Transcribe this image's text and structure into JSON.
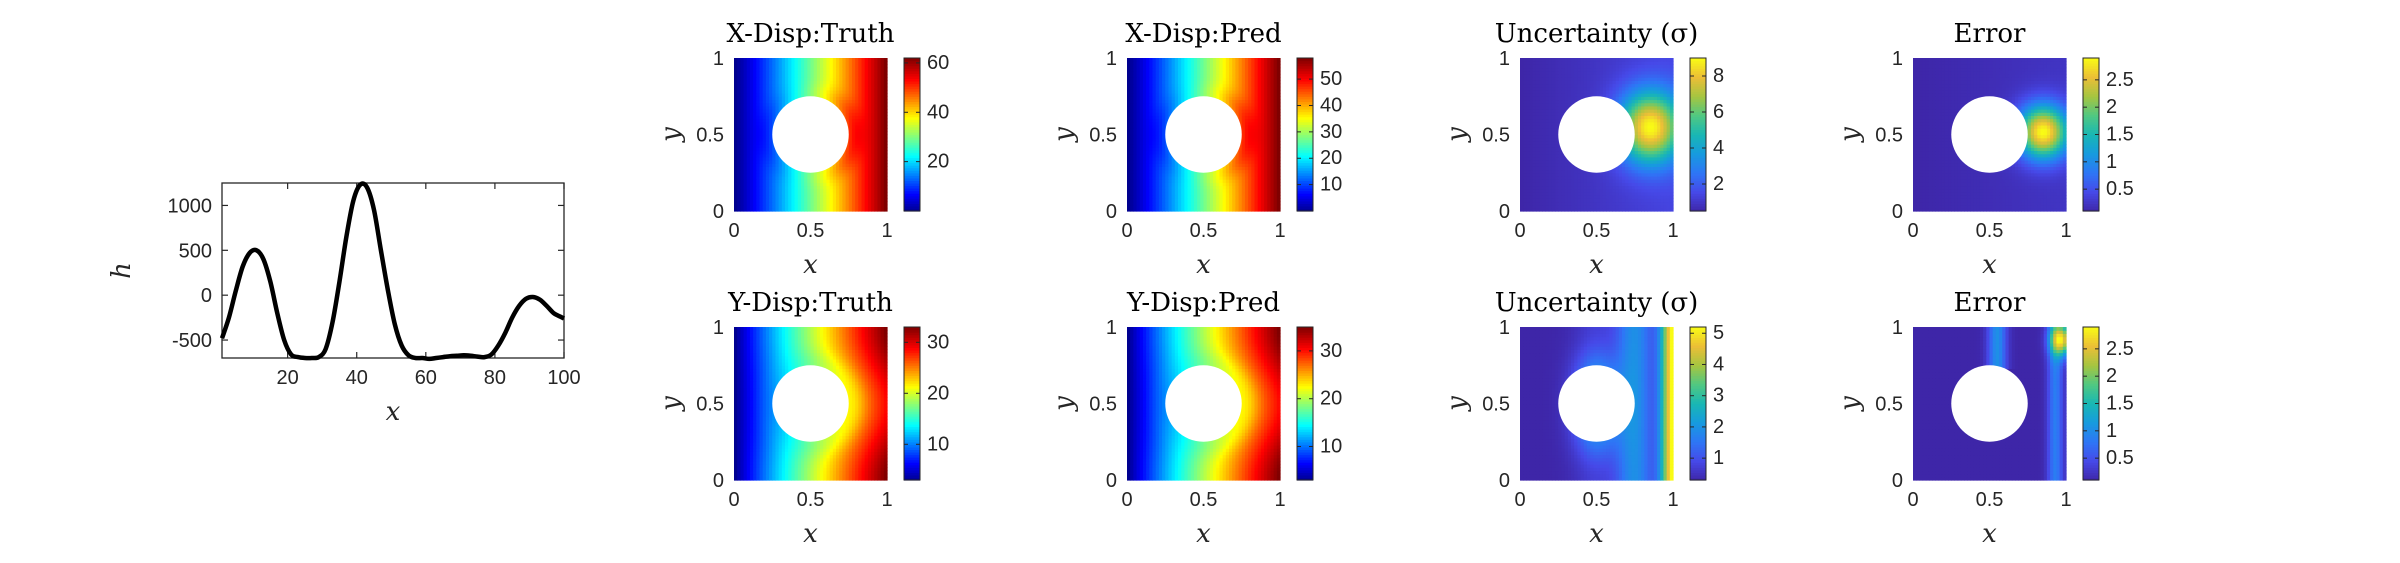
{
  "chart_data": [
    {
      "type": "line",
      "xlabel": "x",
      "ylabel": "h",
      "xlim": [
        1,
        100
      ],
      "ylim": [
        -700,
        1250
      ],
      "xticks": [
        "20",
        "40",
        "60",
        "80",
        "100"
      ],
      "yticks": [
        "-500",
        "0",
        "500",
        "1000"
      ],
      "line_color": "#000000",
      "series": [
        {
          "x": [
            1,
            3,
            5,
            7,
            9,
            11,
            13,
            15,
            17,
            19,
            21,
            23,
            25,
            27,
            29,
            31,
            33,
            35,
            37,
            39,
            41,
            43,
            45,
            47,
            49,
            51,
            53,
            55,
            57,
            59,
            61,
            63,
            65,
            67,
            69,
            71,
            73,
            75,
            77,
            79,
            81,
            83,
            85,
            87,
            89,
            91,
            93,
            95,
            97,
            99,
            100
          ],
          "y": [
            -480,
            -250,
            50,
            320,
            470,
            500,
            400,
            150,
            -200,
            -500,
            -660,
            -690,
            -700,
            -700,
            -690,
            -600,
            -300,
            150,
            650,
            1050,
            1230,
            1200,
            950,
            500,
            60,
            -320,
            -560,
            -670,
            -700,
            -700,
            -710,
            -700,
            -690,
            -680,
            -675,
            -670,
            -675,
            -685,
            -690,
            -660,
            -560,
            -420,
            -250,
            -120,
            -40,
            -20,
            -50,
            -120,
            -200,
            -240,
            -260
          ]
        }
      ]
    },
    {
      "type": "heatmap",
      "title": "X-Disp:Truth",
      "xlabel": "x",
      "ylabel": "y",
      "xlim": [
        0,
        1
      ],
      "ylim": [
        0,
        1
      ],
      "xticks": [
        "0",
        "0.5",
        "1"
      ],
      "yticks": [
        "0",
        "0.5",
        "1"
      ],
      "hole": {
        "center": [
          0.5,
          0.5
        ],
        "radius": 0.25
      },
      "colormap": "jet",
      "clim": [
        0,
        62
      ],
      "colorbar_ticks": [
        20,
        40,
        60
      ],
      "field": "x_disp"
    },
    {
      "type": "heatmap",
      "title": "X-Disp:Pred",
      "xlabel": "x",
      "ylabel": "y",
      "xlim": [
        0,
        1
      ],
      "ylim": [
        0,
        1
      ],
      "xticks": [
        "0",
        "0.5",
        "1"
      ],
      "yticks": [
        "0",
        "0.5",
        "1"
      ],
      "hole": {
        "center": [
          0.5,
          0.5
        ],
        "radius": 0.25
      },
      "colormap": "jet",
      "clim": [
        0,
        58
      ],
      "colorbar_ticks": [
        10,
        20,
        30,
        40,
        50
      ],
      "field": "x_disp"
    },
    {
      "type": "heatmap",
      "title": "Uncertainty (σ)",
      "xlabel": "x",
      "ylabel": "y",
      "xlim": [
        0,
        1
      ],
      "ylim": [
        0,
        1
      ],
      "xticks": [
        "0",
        "0.5",
        "1"
      ],
      "yticks": [
        "0",
        "0.5",
        "1"
      ],
      "hole": {
        "center": [
          0.5,
          0.5
        ],
        "radius": 0.25
      },
      "colormap": "parula",
      "clim": [
        0.5,
        9
      ],
      "colorbar_ticks": [
        2,
        4,
        6,
        8
      ],
      "field": "x_unc"
    },
    {
      "type": "heatmap",
      "title": "Error",
      "xlabel": "x",
      "ylabel": "y",
      "xlim": [
        0,
        1
      ],
      "ylim": [
        0,
        1
      ],
      "xticks": [
        "0",
        "0.5",
        "1"
      ],
      "yticks": [
        "0",
        "0.5",
        "1"
      ],
      "hole": {
        "center": [
          0.5,
          0.5
        ],
        "radius": 0.25
      },
      "colormap": "parula",
      "clim": [
        0.1,
        2.9
      ],
      "colorbar_ticks": [
        0.5,
        1,
        1.5,
        2,
        2.5
      ],
      "field": "x_err"
    },
    {
      "type": "heatmap",
      "title": "Y-Disp:Truth",
      "xlabel": "x",
      "ylabel": "y",
      "xlim": [
        0,
        1
      ],
      "ylim": [
        0,
        1
      ],
      "xticks": [
        "0",
        "0.5",
        "1"
      ],
      "yticks": [
        "0",
        "0.5",
        "1"
      ],
      "hole": {
        "center": [
          0.5,
          0.5
        ],
        "radius": 0.25
      },
      "colormap": "jet",
      "clim": [
        3,
        33
      ],
      "colorbar_ticks": [
        10,
        20,
        30
      ],
      "field": "y_disp"
    },
    {
      "type": "heatmap",
      "title": "Y-Disp:Pred",
      "xlabel": "x",
      "ylabel": "y",
      "xlim": [
        0,
        1
      ],
      "ylim": [
        0,
        1
      ],
      "xticks": [
        "0",
        "0.5",
        "1"
      ],
      "yticks": [
        "0",
        "0.5",
        "1"
      ],
      "hole": {
        "center": [
          0.5,
          0.5
        ],
        "radius": 0.25
      },
      "colormap": "jet",
      "clim": [
        3,
        35
      ],
      "colorbar_ticks": [
        10,
        20,
        30
      ],
      "field": "y_disp"
    },
    {
      "type": "heatmap",
      "title": "Uncertainty (σ)",
      "xlabel": "x",
      "ylabel": "y",
      "xlim": [
        0,
        1
      ],
      "ylim": [
        0,
        1
      ],
      "xticks": [
        "0",
        "0.5",
        "1"
      ],
      "yticks": [
        "0",
        "0.5",
        "1"
      ],
      "hole": {
        "center": [
          0.5,
          0.5
        ],
        "radius": 0.25
      },
      "colormap": "parula",
      "clim": [
        0.3,
        5.2
      ],
      "colorbar_ticks": [
        1,
        2,
        3,
        4,
        5
      ],
      "field": "y_unc"
    },
    {
      "type": "heatmap",
      "title": "Error",
      "xlabel": "x",
      "ylabel": "y",
      "xlim": [
        0,
        1
      ],
      "ylim": [
        0,
        1
      ],
      "xticks": [
        "0",
        "0.5",
        "1"
      ],
      "yticks": [
        "0",
        "0.5",
        "1"
      ],
      "hole": {
        "center": [
          0.5,
          0.5
        ],
        "radius": 0.25
      },
      "colormap": "parula",
      "clim": [
        0.1,
        2.9
      ],
      "colorbar_ticks": [
        0.5,
        1,
        1.5,
        2,
        2.5
      ],
      "field": "y_err"
    }
  ]
}
